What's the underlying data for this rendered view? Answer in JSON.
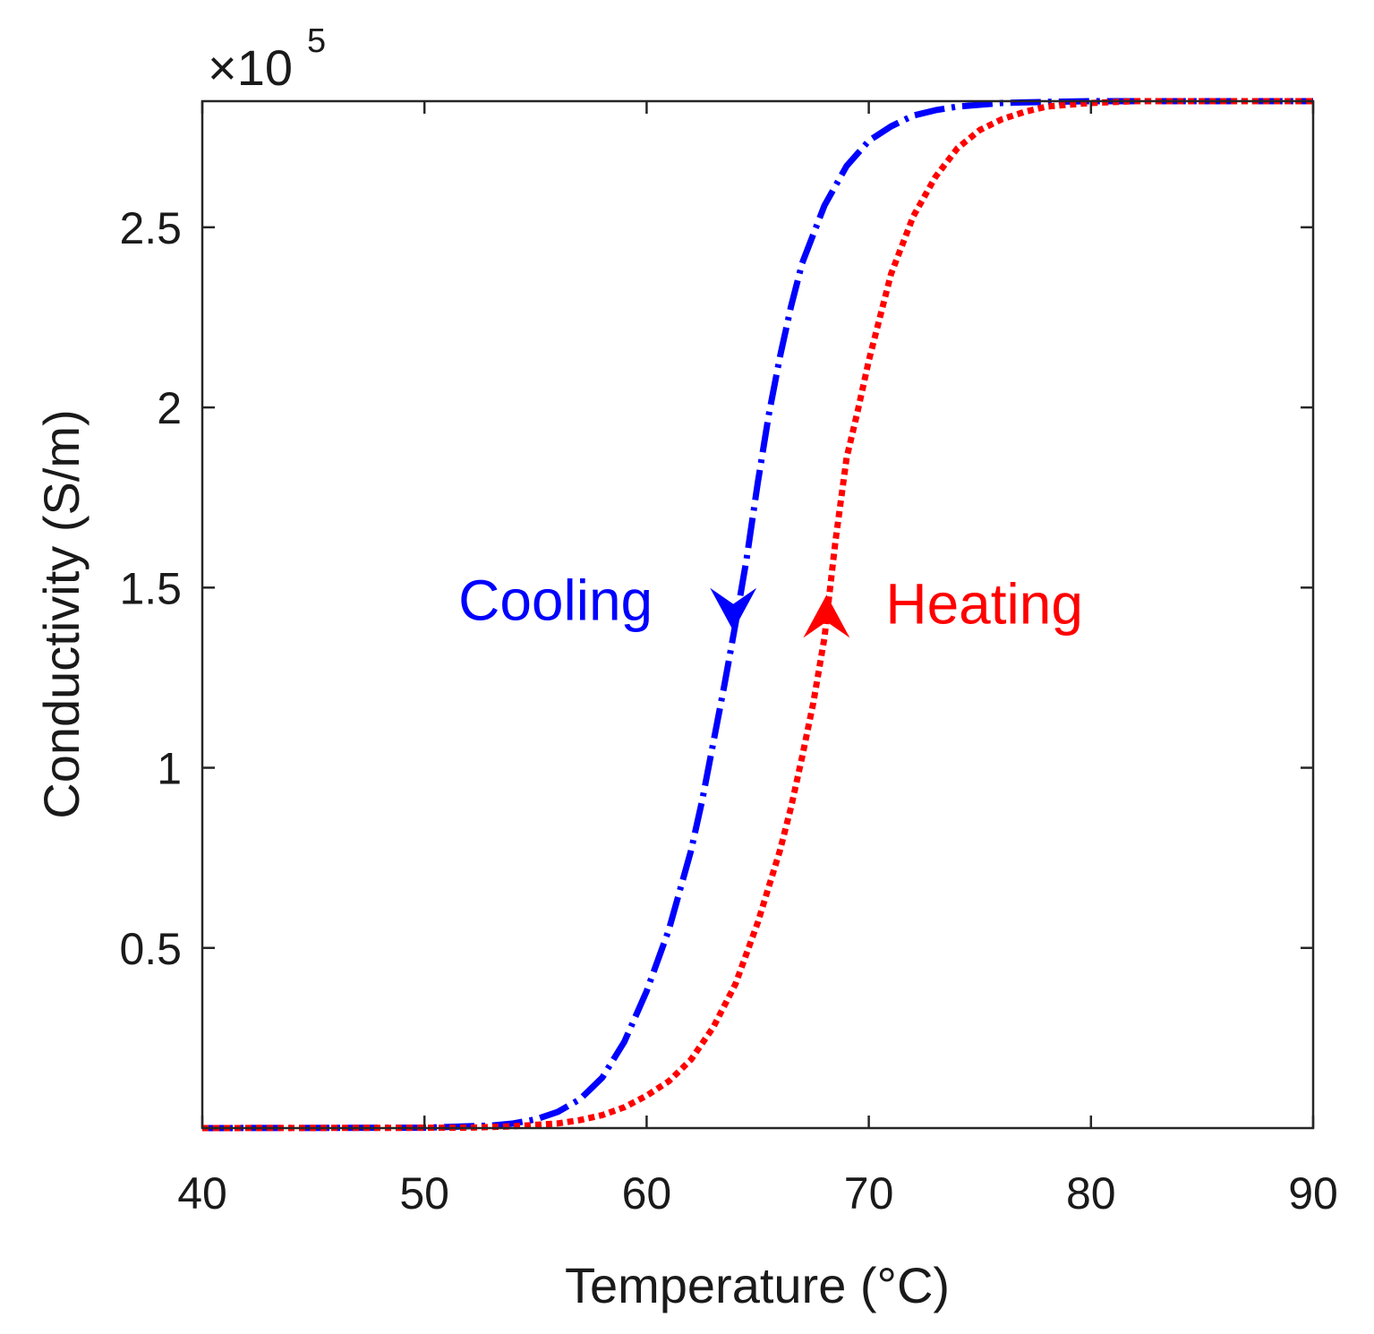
{
  "chart_data": {
    "type": "line",
    "title": "",
    "xlabel": "Temperature (°C)",
    "ylabel": "Conductivity (S/m)",
    "y_exponent_label": "×10",
    "y_exponent_power": "5",
    "y_multiplier": 100000,
    "xlim": [
      40,
      90
    ],
    "ylim": [
      0,
      2.85
    ],
    "x_ticks": [
      40,
      50,
      60,
      70,
      80,
      90
    ],
    "x_tick_labels": [
      "40",
      "50",
      "60",
      "70",
      "80",
      "90"
    ],
    "y_ticks": [
      0.5,
      1,
      1.5,
      2,
      2.5
    ],
    "y_tick_labels": [
      "0.5",
      "1",
      "1.5",
      "2",
      "2.5"
    ],
    "grid": false,
    "box": true,
    "series": [
      {
        "name": "Cooling",
        "color": "#0000ff",
        "line_style": "dash-dot",
        "direction": "down",
        "arrow_at": {
          "x": 63.9,
          "y": 1.38
        },
        "x": [
          40,
          50,
          53,
          54,
          55,
          56,
          57,
          58,
          59,
          60,
          61,
          62,
          62.5,
          63,
          63.5,
          64,
          64.5,
          65,
          65.5,
          66,
          66.5,
          67,
          68,
          69,
          70,
          71,
          72,
          73,
          74,
          75,
          76,
          78,
          80,
          90
        ],
        "y": [
          0,
          0.001,
          0.007,
          0.013,
          0.024,
          0.045,
          0.08,
          0.14,
          0.24,
          0.38,
          0.55,
          0.77,
          0.91,
          1.07,
          1.23,
          1.4,
          1.58,
          1.79,
          1.98,
          2.14,
          2.28,
          2.4,
          2.56,
          2.67,
          2.74,
          2.78,
          2.81,
          2.825,
          2.835,
          2.84,
          2.845,
          2.848,
          2.85,
          2.85
        ]
      },
      {
        "name": "Heating",
        "color": "#ff0000",
        "line_style": "dotted",
        "direction": "up",
        "arrow_at": {
          "x": 68.1,
          "y": 1.48
        },
        "x": [
          40,
          52,
          54,
          56,
          57,
          58,
          59,
          60,
          61,
          62,
          63,
          64,
          65,
          66,
          66.5,
          67,
          67.5,
          68,
          68.5,
          69,
          69.5,
          70,
          71,
          72,
          73,
          74,
          75,
          76,
          77,
          78,
          80,
          82,
          90
        ],
        "y": [
          0,
          0.001,
          0.005,
          0.013,
          0.022,
          0.036,
          0.058,
          0.09,
          0.13,
          0.19,
          0.28,
          0.4,
          0.57,
          0.77,
          0.89,
          1.03,
          1.18,
          1.36,
          1.63,
          1.86,
          1.99,
          2.13,
          2.37,
          2.53,
          2.64,
          2.72,
          2.77,
          2.8,
          2.82,
          2.835,
          2.845,
          2.85,
          2.85
        ]
      }
    ],
    "annotations": [
      {
        "text": "Cooling",
        "color": "#0000ff",
        "x": 55.9,
        "y": 1.41,
        "anchor": "middle"
      },
      {
        "text": "Heating",
        "color": "#ff0000",
        "x": 75.2,
        "y": 1.4,
        "anchor": "middle"
      }
    ]
  }
}
